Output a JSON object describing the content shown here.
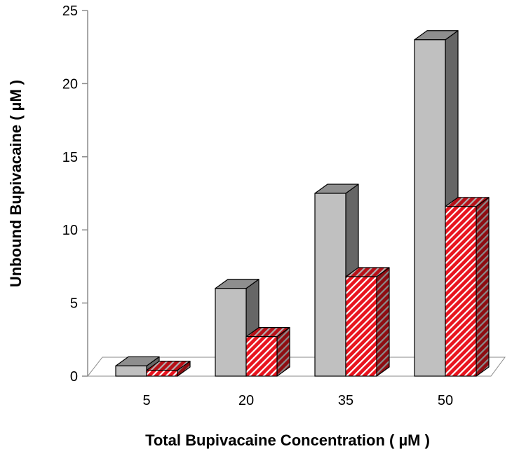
{
  "chart_data": {
    "type": "bar",
    "subtype": "3d-clustered",
    "title": "",
    "xlabel": "Total Bupivacaine Concentration ( µM )",
    "ylabel": "Unbound Bupivacaine ( µM )",
    "ylim": [
      0,
      25
    ],
    "yticks": [
      "0",
      "5",
      "10",
      "15",
      "20",
      "25"
    ],
    "categories": [
      "5",
      "20",
      "35",
      "50"
    ],
    "series": [
      {
        "values": [
          0.7,
          6.0,
          12.5,
          23.0
        ],
        "color": "#c0c0c0",
        "pattern": "solid"
      },
      {
        "values": [
          0.4,
          2.7,
          6.8,
          11.6
        ],
        "color": "#e8141e",
        "pattern": "diagonal-white-stripes"
      }
    ],
    "grid": false,
    "legend": "none"
  }
}
